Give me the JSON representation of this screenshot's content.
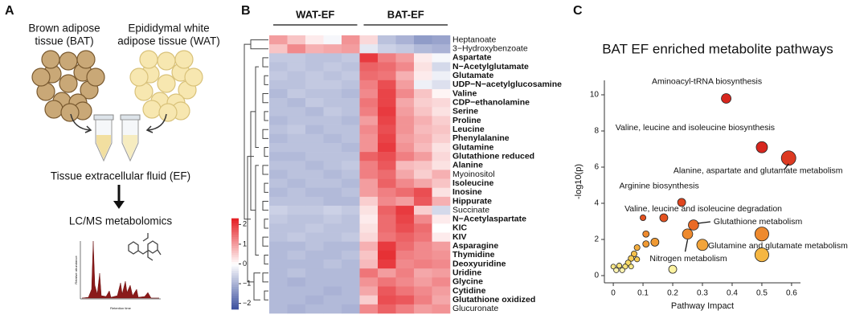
{
  "panel_a": {
    "letter": "A",
    "bat_label": [
      "Brown adipose",
      "tissue (BAT)"
    ],
    "wat_label": [
      "Epididymal white",
      "adipose tissue (WAT)"
    ],
    "ef_label": "Tissue extracellular fluid (EF)",
    "method_label": "LC/MS metabolomics",
    "chrom_y_label": "Relative abundance",
    "chrom_x_label": "Retention time"
  },
  "panel_b_letter": "B",
  "panel_c_letter": "C",
  "chart_data": [
    {
      "type": "heatmap",
      "groups": [
        {
          "name": "WAT-EF",
          "columns": 5
        },
        {
          "name": "BAT-EF",
          "columns": 5
        }
      ],
      "rows": [
        "Heptanoate",
        "3−Hydroxybenzoate",
        "Aspartate",
        "N−Acetylglutamate",
        "Glutamate",
        "UDP−N−acetylglucosamine",
        "Valine",
        "CDP−ethanolamine",
        "Serine",
        "Proline",
        "Leucine",
        "Phenylalanine",
        "Glutamine",
        "Glutathione reduced",
        "Alanine",
        "Myoinositol",
        "Isoleucine",
        "Inosine",
        "Hippurate",
        "Succinate",
        "N−Acetylaspartate",
        "KIC",
        "KIV",
        "Asparagine",
        "Thymidine",
        "Deoxyuridine",
        "Uridine",
        "Glycine",
        "Cytidine",
        "Glutathione oxidized",
        "Glucuronate"
      ],
      "bold": [
        false,
        false,
        true,
        true,
        true,
        true,
        true,
        true,
        true,
        true,
        true,
        true,
        true,
        true,
        true,
        false,
        true,
        true,
        true,
        false,
        true,
        true,
        true,
        true,
        true,
        true,
        true,
        true,
        true,
        true,
        false
      ],
      "values": [
        [
          1.0,
          0.6,
          0.2,
          -0.1,
          1.1,
          0.4,
          -0.8,
          -1.0,
          -1.3,
          -1.2
        ],
        [
          0.6,
          1.2,
          0.8,
          0.9,
          1.0,
          -0.3,
          -0.6,
          -0.7,
          -0.9,
          -1.0
        ],
        [
          -0.7,
          -0.7,
          -0.8,
          -0.8,
          -0.7,
          2.0,
          1.3,
          1.0,
          0.2,
          -0.1
        ],
        [
          -0.8,
          -0.7,
          -0.8,
          -0.7,
          -0.8,
          1.6,
          1.5,
          1.2,
          0.3,
          -0.5
        ],
        [
          -0.7,
          -0.8,
          -0.7,
          -0.8,
          -0.7,
          1.5,
          1.4,
          0.8,
          0.2,
          -0.2
        ],
        [
          -0.8,
          -0.8,
          -0.7,
          -0.7,
          -0.8,
          1.3,
          1.8,
          1.0,
          -0.2,
          -0.4
        ],
        [
          -0.9,
          -0.7,
          -0.8,
          -0.8,
          -0.9,
          1.2,
          1.9,
          1.2,
          0.6,
          0.1
        ],
        [
          -0.8,
          -0.9,
          -0.7,
          -0.8,
          -0.8,
          1.4,
          1.9,
          0.9,
          0.5,
          0.4
        ],
        [
          -0.8,
          -0.8,
          -0.9,
          -0.7,
          -0.8,
          1.3,
          2.0,
          1.0,
          0.6,
          0.3
        ],
        [
          -0.9,
          -0.8,
          -0.8,
          -0.8,
          -0.9,
          1.0,
          1.9,
          1.1,
          0.8,
          0.5
        ],
        [
          -0.8,
          -0.7,
          -0.9,
          -0.8,
          -0.8,
          1.2,
          1.8,
          1.1,
          0.7,
          0.6
        ],
        [
          -0.9,
          -0.8,
          -0.8,
          -0.9,
          -0.8,
          1.1,
          1.9,
          1.0,
          0.8,
          0.5
        ],
        [
          -0.8,
          -0.8,
          -0.8,
          -0.8,
          -0.9,
          1.1,
          2.0,
          1.1,
          0.7,
          0.3
        ],
        [
          -0.9,
          -0.9,
          -0.8,
          -0.8,
          -0.8,
          1.6,
          1.8,
          1.3,
          1.0,
          0.4
        ],
        [
          -0.8,
          -0.8,
          -0.9,
          -0.8,
          -0.7,
          1.3,
          1.7,
          0.7,
          0.6,
          0.3
        ],
        [
          -0.9,
          -0.8,
          -0.8,
          -0.9,
          -0.8,
          1.3,
          1.5,
          0.9,
          0.5,
          0.8
        ],
        [
          -0.8,
          -0.9,
          -0.8,
          -0.8,
          -0.9,
          1.0,
          1.6,
          1.2,
          0.9,
          0.6
        ],
        [
          -0.9,
          -0.8,
          -0.9,
          -0.9,
          -0.8,
          1.0,
          1.3,
          1.5,
          1.8,
          0.3
        ],
        [
          -0.8,
          -0.8,
          -0.8,
          -0.9,
          -0.9,
          0.5,
          1.2,
          1.0,
          1.7,
          0.8
        ],
        [
          -0.6,
          -0.7,
          -0.7,
          -0.6,
          -0.7,
          0.3,
          1.6,
          2.0,
          0.5,
          -0.5
        ],
        [
          -0.7,
          -0.8,
          -0.8,
          -0.7,
          -0.8,
          0.2,
          1.5,
          1.9,
          1.2,
          0.2
        ],
        [
          -0.8,
          -0.8,
          -0.7,
          -0.8,
          -0.8,
          0.3,
          1.5,
          1.8,
          1.5,
          0.0
        ],
        [
          -0.8,
          -0.7,
          -0.8,
          -0.8,
          -0.7,
          0.4,
          1.4,
          1.6,
          1.4,
          0.2
        ],
        [
          -0.9,
          -0.9,
          -0.8,
          -0.9,
          -0.9,
          0.8,
          2.0,
          1.5,
          1.2,
          1.0
        ],
        [
          -0.9,
          -0.8,
          -0.9,
          -0.9,
          -0.8,
          0.6,
          2.1,
          1.3,
          1.2,
          1.1
        ],
        [
          -0.9,
          -0.9,
          -0.9,
          -0.8,
          -0.9,
          0.7,
          2.0,
          1.2,
          1.3,
          1.2
        ],
        [
          -0.9,
          -0.8,
          -0.9,
          -0.9,
          -0.9,
          1.4,
          1.0,
          1.3,
          0.9,
          1.0
        ],
        [
          -0.9,
          -1.0,
          -0.9,
          -0.9,
          -0.9,
          1.1,
          1.4,
          1.2,
          1.0,
          1.2
        ],
        [
          -0.9,
          -0.9,
          -0.9,
          -1.0,
          -0.9,
          0.9,
          1.7,
          1.4,
          1.2,
          1.0
        ],
        [
          -0.9,
          -0.9,
          -1.0,
          -0.9,
          -0.9,
          0.5,
          1.8,
          1.7,
          1.3,
          0.9
        ],
        [
          -0.9,
          -1.0,
          -0.9,
          -0.9,
          -1.0,
          1.2,
          1.6,
          1.3,
          1.0,
          1.1
        ]
      ],
      "colormap": [
        "#3b4f9e",
        "#ffffff",
        "#e41d22"
      ],
      "clim": [
        -2.3,
        2.3
      ],
      "cticks": [
        {
          "value": -2,
          "label": "−2"
        },
        {
          "value": -1,
          "label": "−1"
        },
        0,
        1,
        2
      ]
    },
    {
      "type": "scatter",
      "title": "BAT EF enriched metabolite pathways",
      "x_label": "Pathway Impact",
      "y_label": "-log10(p)",
      "xlim": [
        -0.03,
        0.63
      ],
      "ylim": [
        -0.4,
        10.8
      ],
      "xticks": [
        0,
        0.1,
        0.2,
        0.3,
        0.4,
        0.5,
        0.6
      ],
      "yticks": [
        0,
        2,
        4,
        6,
        8,
        10
      ],
      "points": [
        {
          "x": 0.38,
          "y": 9.8,
          "size": 3,
          "color": "#d7261e",
          "label": "Aminoacyl-tRNA biosynthesis"
        },
        {
          "x": 0.5,
          "y": 7.1,
          "size": 3.5,
          "color": "#d7261e",
          "label": "Valine, leucine and isoleucine biosynthesis"
        },
        {
          "x": 0.59,
          "y": 6.5,
          "size": 4.5,
          "color": "#dd3a22",
          "label": "Alanine, aspartate and glutamate metabolism"
        },
        {
          "x": 0.23,
          "y": 4.05,
          "size": 2.5,
          "color": "#e0461f",
          "label": "Arginine biosynthesis"
        },
        {
          "x": 0.1,
          "y": 3.2,
          "size": 1.8,
          "color": "#e4521f",
          "label": "Valine, leucine and isoleucine degradation"
        },
        {
          "x": 0.17,
          "y": 3.2,
          "size": 2.5,
          "color": "#e4521f"
        },
        {
          "x": 0.27,
          "y": 2.8,
          "size": 3.2,
          "color": "#ea6a25",
          "label": "Glutathione metabolism"
        },
        {
          "x": 0.5,
          "y": 2.3,
          "size": 4.3,
          "color": "#ee8a2e",
          "label": "Glutamine and glutamate metabolism"
        },
        {
          "x": 0.25,
          "y": 2.3,
          "size": 3.2,
          "color": "#ee8a2e",
          "label": "Nitrogen metabolism"
        },
        {
          "x": 0.11,
          "y": 2.3,
          "size": 2,
          "color": "#ee8a2e"
        },
        {
          "x": 0.14,
          "y": 1.85,
          "size": 2.5,
          "color": "#f09a34"
        },
        {
          "x": 0.11,
          "y": 1.75,
          "size": 2,
          "color": "#f09a34"
        },
        {
          "x": 0.3,
          "y": 1.7,
          "size": 3.5,
          "color": "#f2a43a"
        },
        {
          "x": 0.5,
          "y": 1.15,
          "size": 4.3,
          "color": "#f5b642"
        },
        {
          "x": 0.08,
          "y": 1.55,
          "size": 1.8,
          "color": "#f3ad3e"
        },
        {
          "x": 0.07,
          "y": 1.2,
          "size": 1.8,
          "color": "#f5c04a"
        },
        {
          "x": 0.06,
          "y": 0.95,
          "size": 1.8,
          "color": "#f6cc56"
        },
        {
          "x": 0.08,
          "y": 0.9,
          "size": 1.6,
          "color": "#f6cc56"
        },
        {
          "x": 0.05,
          "y": 0.7,
          "size": 1.8,
          "color": "#f8da66"
        },
        {
          "x": 0.04,
          "y": 0.5,
          "size": 1.6,
          "color": "#fae47a"
        },
        {
          "x": 0.02,
          "y": 0.55,
          "size": 1.6,
          "color": "#fae47a"
        },
        {
          "x": 0.0,
          "y": 0.5,
          "size": 1.5,
          "color": "#fbe98a"
        },
        {
          "x": 0.06,
          "y": 0.5,
          "size": 1.5,
          "color": "#fbe98a"
        },
        {
          "x": 0.03,
          "y": 0.3,
          "size": 1.6,
          "color": "#fdf3b0"
        },
        {
          "x": 0.01,
          "y": 0.3,
          "size": 1.6,
          "color": "#fdf3b0"
        },
        {
          "x": 0.2,
          "y": 0.35,
          "size": 2.5,
          "color": "#fdf3a0"
        }
      ]
    }
  ]
}
